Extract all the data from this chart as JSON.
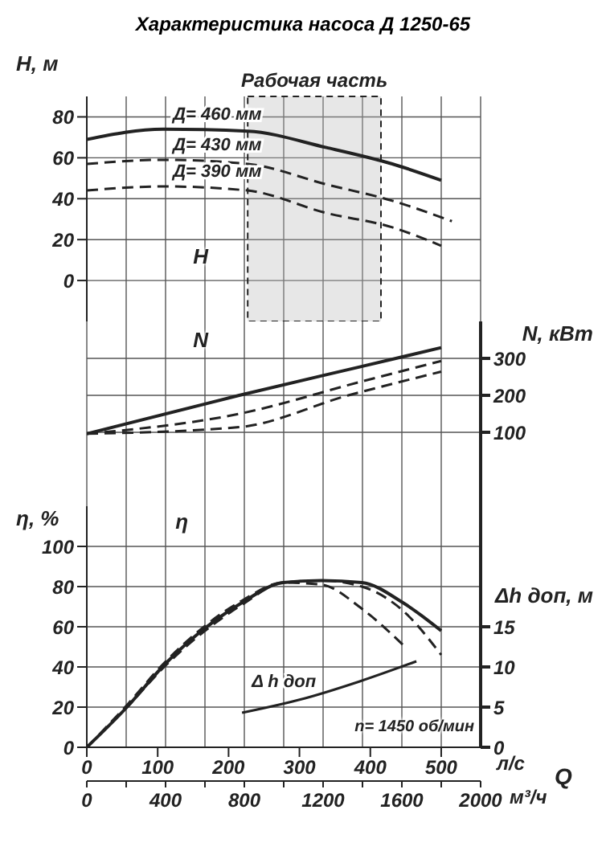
{
  "chart_data": [
    {
      "type": "line",
      "title": "Характеристика насоса Д 1250-65",
      "ylabel": "H, м",
      "annotations": [
        "H"
      ],
      "xlim": [
        0,
        555.6
      ],
      "ylim": [
        -20,
        90
      ],
      "yticks": [
        0,
        20,
        40,
        60,
        80
      ],
      "grid": true,
      "tick_labels": "y",
      "bands": [
        {
          "axis": "x",
          "from": 227,
          "to": 415,
          "label": "Рабочая часть"
        }
      ],
      "series": [
        {
          "name": "Д= 460 мм",
          "color": "#222222",
          "line_style": "solid",
          "x": [
            0,
            108,
            227,
            338,
            431,
            500
          ],
          "values": [
            69,
            74,
            73,
            65,
            57,
            49
          ]
        },
        {
          "name": "Д= 430 мм",
          "color": "#222222",
          "line_style": "dashed",
          "x": [
            0,
            108,
            227,
            338,
            431,
            515
          ],
          "values": [
            57,
            59,
            57,
            47,
            39,
            29
          ]
        },
        {
          "name": "Д= 390 мм",
          "color": "#222222",
          "line_style": "dashed",
          "x": [
            0,
            108,
            227,
            338,
            431,
            500
          ],
          "values": [
            44,
            46,
            44,
            33,
            26,
            17
          ]
        }
      ]
    },
    {
      "type": "line",
      "y2label": "N, кВт",
      "annotations": [
        "N"
      ],
      "xlim": [
        0,
        555.6
      ],
      "y2lim": [
        -100,
        400
      ],
      "y2ticks": [
        100,
        200,
        300
      ],
      "grid": true,
      "tick_labels": "y",
      "series": [
        {
          "color": "#222222",
          "line_style": "solid",
          "axis": "y2",
          "x": [
            0,
            215,
            385,
            500
          ],
          "values": [
            96,
            200,
            277,
            329
          ]
        },
        {
          "color": "#222222",
          "line_style": "dashed",
          "axis": "y2",
          "x": [
            0,
            215,
            385,
            500
          ],
          "values": [
            96,
            150,
            236,
            293
          ]
        },
        {
          "color": "#222222",
          "line_style": "dashed",
          "axis": "y2",
          "x": [
            0,
            215,
            369,
            500
          ],
          "values": [
            96,
            114,
            200,
            264
          ]
        }
      ]
    },
    {
      "type": "line",
      "ylabel": "η, %",
      "y2label": "Δh доп, м",
      "xlabel": "л/с",
      "x2label": "м³/ч",
      "annotations": [
        "η",
        "n= 1450 об/мин",
        "Q"
      ],
      "xlim": [
        0,
        555.6
      ],
      "xticks": [
        0,
        100,
        200,
        300,
        400,
        500
      ],
      "x2lim": [
        0,
        2000
      ],
      "x2ticks": [
        0,
        {
          "value": 200,
          "label": null
        },
        400,
        {
          "value": 600,
          "label": null
        },
        800,
        {
          "value": 1000,
          "label": null
        },
        1200,
        {
          "value": 1400,
          "label": null
        },
        1600,
        {
          "value": 1800,
          "label": null
        },
        2000
      ],
      "ylim": [
        0,
        120
      ],
      "yticks": [
        0,
        20,
        40,
        60,
        80,
        100
      ],
      "y2lim": [
        0,
        30
      ],
      "y2ticks": [
        0,
        5,
        10,
        15
      ],
      "grid": true,
      "series": [
        {
          "color": "#222222",
          "line_style": "solid",
          "x": [
            0,
            54,
            112,
            219,
            277,
            331,
            388,
            446,
            500
          ],
          "values": [
            0,
            19,
            42,
            72,
            82,
            83,
            82,
            72,
            58
          ]
        },
        {
          "color": "#222222",
          "line_style": "dashed",
          "x": [
            0,
            54,
            112,
            219,
            277,
            331,
            388,
            446,
            500
          ],
          "values": [
            0,
            19,
            41,
            71,
            82,
            83,
            80,
            68,
            46
          ]
        },
        {
          "color": "#222222",
          "line_style": "dashed",
          "x": [
            0,
            54,
            112,
            219,
            277,
            331,
            388,
            446
          ],
          "values": [
            0,
            20,
            43,
            73,
            82,
            81,
            69,
            51
          ]
        },
        {
          "name": "Δ h доп",
          "color": "#222222",
          "line_style": "solid",
          "axis": "y2",
          "x": [
            219,
            308,
            385,
            465
          ],
          "values": [
            4.3,
            6.1,
            8.2,
            10.7
          ]
        }
      ]
    }
  ]
}
